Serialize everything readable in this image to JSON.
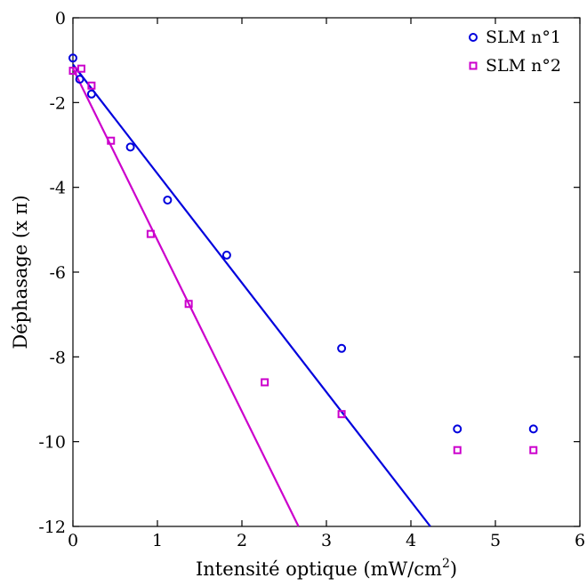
{
  "chart_data": {
    "type": "scatter",
    "xlabel": "Intensité optique (mW/cm",
    "xlabel_sup": "2",
    "xlabel_end": ")",
    "ylabel": "Déphasage (x π)",
    "xlim": [
      0,
      6
    ],
    "ylim": [
      -12,
      0
    ],
    "xticks": [
      "0",
      "1",
      "2",
      "3",
      "4",
      "5",
      "6"
    ],
    "yticks": [
      "0",
      "-2",
      "-4",
      "-6",
      "-8",
      "-10",
      "-12"
    ],
    "xtick_values": [
      0,
      1,
      2,
      3,
      4,
      5,
      6
    ],
    "ytick_values": [
      0,
      -2,
      -4,
      -6,
      -8,
      -10,
      -12
    ],
    "grid": false,
    "legend_position": "top-right",
    "series": [
      {
        "name": "SLM n°1",
        "color": "#0000dd",
        "marker": "circle",
        "x": [
          0.0,
          0.08,
          0.22,
          0.68,
          1.12,
          1.82,
          3.18,
          4.55,
          5.45
        ],
        "y": [
          -0.95,
          -1.45,
          -1.8,
          -3.05,
          -4.3,
          -5.6,
          -7.8,
          -9.7,
          -9.7
        ],
        "fit_line": {
          "x": [
            0.0,
            4.23
          ],
          "y": [
            -1.1,
            -12.0
          ]
        }
      },
      {
        "name": "SLM n°2",
        "color": "#cc00cc",
        "marker": "square",
        "x": [
          0.0,
          0.1,
          0.22,
          0.45,
          0.92,
          1.37,
          2.27,
          3.18,
          4.55,
          5.45
        ],
        "y": [
          -1.25,
          -1.2,
          -1.6,
          -2.9,
          -5.1,
          -6.75,
          -8.6,
          -9.35,
          -10.2,
          -10.2
        ],
        "fit_line": {
          "x": [
            0.0,
            2.67
          ],
          "y": [
            -1.2,
            -12.0
          ]
        }
      }
    ]
  }
}
